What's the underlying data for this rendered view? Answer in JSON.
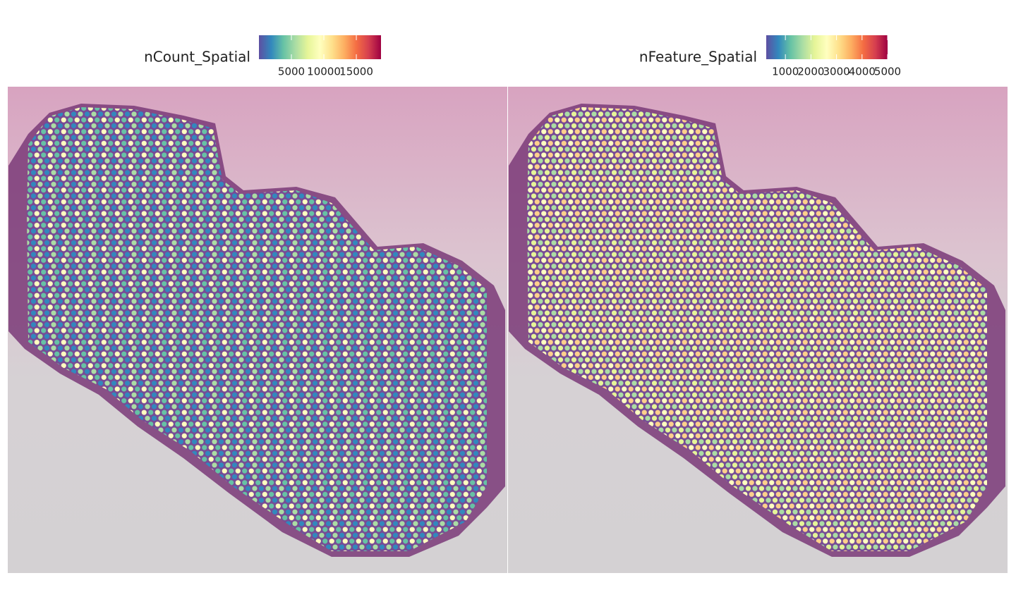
{
  "chart_data": [
    {
      "type": "spatial",
      "legend_title": "nCount_Spatial",
      "colorbar_lim": [
        0,
        18800
      ],
      "colorbar_ticks": [
        5000,
        10000,
        15000
      ],
      "colors": [
        "#5e4fa2",
        "#3288bd",
        "#66c2a5",
        "#abdda4",
        "#e6f598",
        "#ffffbf",
        "#fee08b",
        "#fdae61",
        "#f46d43",
        "#d53e4f",
        "#9e0142"
      ]
    },
    {
      "type": "spatial",
      "legend_title": "nFeature_Spatial",
      "colorbar_lim": [
        250,
        5000
      ],
      "colorbar_ticks": [
        1000,
        2000,
        3000,
        4000,
        5000
      ],
      "colors": [
        "#5e4fa2",
        "#3288bd",
        "#66c2a5",
        "#abdda4",
        "#e6f598",
        "#ffffbf",
        "#fee08b",
        "#fdae61",
        "#f46d43",
        "#d53e4f",
        "#9e0142"
      ]
    }
  ]
}
